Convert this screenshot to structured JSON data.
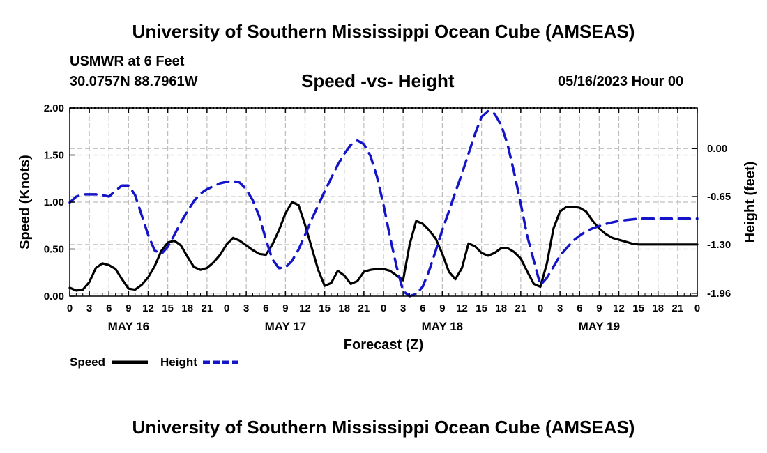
{
  "header": {
    "title": "University of Southern Mississippi Ocean Cube (AMSEAS)",
    "station": "USMWR at 6 Feet",
    "coords": "30.0757N  88.7961W",
    "subtitle": "Speed -vs- Height",
    "datetime": "05/16/2023 Hour 00"
  },
  "footer": {
    "title": "University of Southern Mississippi Ocean Cube (AMSEAS)"
  },
  "colors": {
    "speed": "#000000",
    "height": "#1414c8",
    "grid": "#bdbdbd"
  },
  "chart_data": {
    "type": "line",
    "title": "Speed -vs- Height",
    "xlabel": "Forecast (Z)",
    "ylabel": "Speed (Knots)",
    "y2label": "Height (feet)",
    "x_hours_range": [
      0,
      96
    ],
    "ylim": [
      0,
      2.0
    ],
    "y2lim": [
      -2.0,
      0.55
    ],
    "y_ticks": [
      "0.00",
      "0.50",
      "1.00",
      "1.50",
      "2.00"
    ],
    "y_tick_values": [
      0,
      0.5,
      1.0,
      1.5,
      2.0
    ],
    "y2_ticks": [
      "0.00",
      "-0.65",
      "-1.30",
      "-1.96"
    ],
    "y2_tick_values": [
      0.0,
      -0.65,
      -1.3,
      -1.96
    ],
    "x_tick_labels": [
      "0",
      "3",
      "6",
      "9",
      "12",
      "15",
      "18",
      "21",
      "0",
      "3",
      "6",
      "9",
      "12",
      "15",
      "18",
      "21",
      "0",
      "3",
      "6",
      "9",
      "12",
      "15",
      "18",
      "21",
      "0",
      "3",
      "6",
      "9",
      "12",
      "15",
      "18",
      "21",
      "0"
    ],
    "day_labels": [
      {
        "label": "MAY 16",
        "hour": 9
      },
      {
        "label": "MAY 17",
        "hour": 33
      },
      {
        "label": "MAY 18",
        "hour": 57
      },
      {
        "label": "MAY 19",
        "hour": 81
      }
    ],
    "legend": [
      "Speed",
      "Height"
    ],
    "series": [
      {
        "name": "Speed",
        "axis": "left",
        "x": [
          0,
          1,
          2,
          3,
          4,
          5,
          6,
          7,
          8,
          9,
          10,
          11,
          12,
          13,
          14,
          15,
          16,
          17,
          18,
          19,
          20,
          21,
          22,
          23,
          24,
          25,
          26,
          27,
          28,
          29,
          30,
          31,
          32,
          33,
          34,
          35,
          36,
          37,
          38,
          39,
          40,
          41,
          42,
          43,
          44,
          45,
          46,
          47,
          48,
          49,
          50,
          51,
          52,
          53,
          54,
          55,
          56,
          57,
          58,
          59,
          60,
          61,
          62,
          63,
          64,
          65,
          66,
          67,
          68,
          69,
          70,
          71,
          72,
          73,
          74,
          75,
          76,
          77,
          78,
          79,
          80,
          81,
          82,
          83,
          84,
          85,
          86,
          87,
          88,
          89,
          90,
          91,
          92,
          93,
          94,
          95,
          96
        ],
        "values": [
          0.09,
          0.06,
          0.07,
          0.15,
          0.3,
          0.35,
          0.33,
          0.29,
          0.18,
          0.08,
          0.07,
          0.12,
          0.2,
          0.32,
          0.48,
          0.57,
          0.59,
          0.54,
          0.42,
          0.31,
          0.28,
          0.3,
          0.36,
          0.44,
          0.55,
          0.62,
          0.59,
          0.54,
          0.49,
          0.45,
          0.44,
          0.55,
          0.7,
          0.88,
          1.0,
          0.97,
          0.76,
          0.52,
          0.28,
          0.11,
          0.14,
          0.27,
          0.22,
          0.13,
          0.16,
          0.26,
          0.28,
          0.29,
          0.29,
          0.27,
          0.22,
          0.17,
          0.55,
          0.8,
          0.77,
          0.7,
          0.61,
          0.45,
          0.26,
          0.18,
          0.3,
          0.56,
          0.53,
          0.46,
          0.43,
          0.46,
          0.51,
          0.51,
          0.47,
          0.4,
          0.26,
          0.13,
          0.1,
          0.35,
          0.72,
          0.9,
          0.95,
          0.95,
          0.94,
          0.9,
          0.8,
          0.72,
          0.66,
          0.62,
          0.6,
          0.58,
          0.56,
          0.55,
          0.55,
          0.55,
          0.55,
          0.55,
          0.55,
          0.55,
          0.55,
          0.55,
          0.55
        ]
      },
      {
        "name": "Height",
        "axis": "right",
        "x": [
          0,
          1,
          2,
          3,
          4,
          5,
          6,
          7,
          8,
          9,
          10,
          11,
          12,
          13,
          14,
          15,
          16,
          17,
          18,
          19,
          20,
          21,
          22,
          23,
          24,
          25,
          26,
          27,
          28,
          29,
          30,
          31,
          32,
          33,
          34,
          35,
          36,
          37,
          38,
          39,
          40,
          41,
          42,
          43,
          44,
          45,
          46,
          47,
          48,
          49,
          50,
          51,
          52,
          53,
          54,
          55,
          56,
          57,
          58,
          59,
          60,
          61,
          62,
          63,
          64,
          65,
          66,
          67,
          68,
          69,
          70,
          71,
          72,
          73,
          74,
          75,
          76,
          77,
          78,
          79,
          80,
          81,
          82,
          83,
          84,
          85,
          86,
          87,
          88,
          89,
          90,
          91,
          92,
          93,
          94,
          95,
          96
        ],
        "values": [
          -0.73,
          -0.65,
          -0.62,
          -0.62,
          -0.62,
          -0.63,
          -0.65,
          -0.57,
          -0.5,
          -0.5,
          -0.63,
          -0.9,
          -1.17,
          -1.38,
          -1.43,
          -1.33,
          -1.17,
          -1.0,
          -0.85,
          -0.71,
          -0.61,
          -0.55,
          -0.51,
          -0.47,
          -0.45,
          -0.44,
          -0.46,
          -0.55,
          -0.7,
          -0.92,
          -1.23,
          -1.5,
          -1.62,
          -1.61,
          -1.52,
          -1.37,
          -1.17,
          -0.96,
          -0.77,
          -0.58,
          -0.4,
          -0.22,
          -0.07,
          0.05,
          0.11,
          0.06,
          -0.1,
          -0.38,
          -0.76,
          -1.2,
          -1.6,
          -1.93,
          -2.0,
          -1.97,
          -1.87,
          -1.65,
          -1.38,
          -1.1,
          -0.85,
          -0.59,
          -0.34,
          -0.07,
          0.2,
          0.43,
          0.51,
          0.47,
          0.32,
          0.05,
          -0.33,
          -0.75,
          -1.19,
          -1.52,
          -1.85,
          -1.75,
          -1.6,
          -1.45,
          -1.35,
          -1.25,
          -1.18,
          -1.12,
          -1.08,
          -1.05,
          -1.02,
          -1.0,
          -0.98,
          -0.97,
          -0.96,
          -0.95,
          -0.95,
          -0.95,
          -0.95,
          -0.95,
          -0.95,
          -0.95,
          -0.95,
          -0.95,
          -0.95
        ]
      }
    ]
  }
}
